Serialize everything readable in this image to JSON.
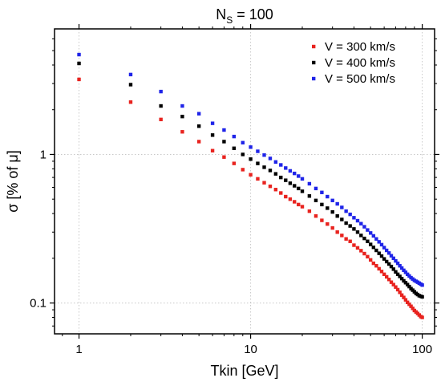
{
  "chart_data": {
    "type": "scatter",
    "title": {
      "main": "N",
      "sub": "S",
      "rest": " = 100"
    },
    "xlabel": "Tkin [GeV]",
    "ylabel": "σ [% of μ]",
    "xscale": "log",
    "yscale": "log",
    "xlim": [
      0.72,
      118
    ],
    "ylim": [
      0.062,
      7.0
    ],
    "xticks": [
      {
        "value": 1,
        "label": "1"
      },
      {
        "value": 10,
        "label": "10"
      },
      {
        "value": 100,
        "label": "100"
      }
    ],
    "yticks": [
      {
        "value": 0.1,
        "label": "0.1"
      },
      {
        "value": 1,
        "label": "1"
      }
    ],
    "grid": true,
    "legend_position": "top-right",
    "x": [
      1,
      2,
      3,
      4,
      5,
      6,
      7,
      8,
      9,
      10,
      11,
      12,
      13,
      14,
      15,
      16,
      17,
      18,
      19,
      20,
      22,
      24,
      26,
      28,
      30,
      32,
      34,
      36,
      38,
      40,
      42,
      44,
      46,
      48,
      50,
      52,
      54,
      56,
      58,
      60,
      62,
      64,
      66,
      68,
      70,
      72,
      74,
      76,
      78,
      80,
      82,
      84,
      86,
      88,
      90,
      92,
      94,
      96,
      98,
      100
    ],
    "series": [
      {
        "name": "V = 300 km/s",
        "color": "#e8231f",
        "values": [
          3.2,
          2.25,
          1.72,
          1.42,
          1.22,
          1.06,
          0.96,
          0.87,
          0.79,
          0.73,
          0.685,
          0.645,
          0.61,
          0.58,
          0.55,
          0.52,
          0.5,
          0.48,
          0.46,
          0.445,
          0.415,
          0.385,
          0.36,
          0.34,
          0.32,
          0.3,
          0.285,
          0.27,
          0.26,
          0.245,
          0.235,
          0.225,
          0.215,
          0.205,
          0.195,
          0.185,
          0.178,
          0.17,
          0.163,
          0.156,
          0.15,
          0.144,
          0.138,
          0.133,
          0.128,
          0.123,
          0.118,
          0.113,
          0.109,
          0.105,
          0.101,
          0.098,
          0.095,
          0.092,
          0.089,
          0.087,
          0.085,
          0.083,
          0.081,
          0.08
        ]
      },
      {
        "name": "V = 400 km/s",
        "color": "#000000",
        "values": [
          4.1,
          2.95,
          2.12,
          1.8,
          1.55,
          1.35,
          1.22,
          1.1,
          1.0,
          0.93,
          0.87,
          0.82,
          0.78,
          0.74,
          0.7,
          0.67,
          0.64,
          0.615,
          0.59,
          0.565,
          0.525,
          0.49,
          0.46,
          0.435,
          0.41,
          0.385,
          0.365,
          0.345,
          0.33,
          0.315,
          0.3,
          0.285,
          0.272,
          0.26,
          0.248,
          0.237,
          0.226,
          0.216,
          0.207,
          0.198,
          0.19,
          0.183,
          0.176,
          0.169,
          0.162,
          0.156,
          0.151,
          0.146,
          0.141,
          0.137,
          0.133,
          0.129,
          0.125,
          0.122,
          0.119,
          0.116,
          0.114,
          0.112,
          0.111,
          0.11
        ]
      },
      {
        "name": "V = 500 km/s",
        "color": "#1f24e8",
        "values": [
          4.7,
          3.45,
          2.65,
          2.12,
          1.88,
          1.62,
          1.46,
          1.32,
          1.2,
          1.12,
          1.05,
          0.99,
          0.94,
          0.89,
          0.85,
          0.81,
          0.775,
          0.745,
          0.715,
          0.685,
          0.635,
          0.59,
          0.555,
          0.52,
          0.49,
          0.465,
          0.44,
          0.415,
          0.395,
          0.375,
          0.358,
          0.342,
          0.326,
          0.31,
          0.296,
          0.283,
          0.27,
          0.258,
          0.247,
          0.236,
          0.226,
          0.217,
          0.208,
          0.2,
          0.192,
          0.185,
          0.178,
          0.172,
          0.166,
          0.161,
          0.156,
          0.152,
          0.148,
          0.145,
          0.142,
          0.14,
          0.138,
          0.136,
          0.134,
          0.132
        ]
      }
    ]
  }
}
